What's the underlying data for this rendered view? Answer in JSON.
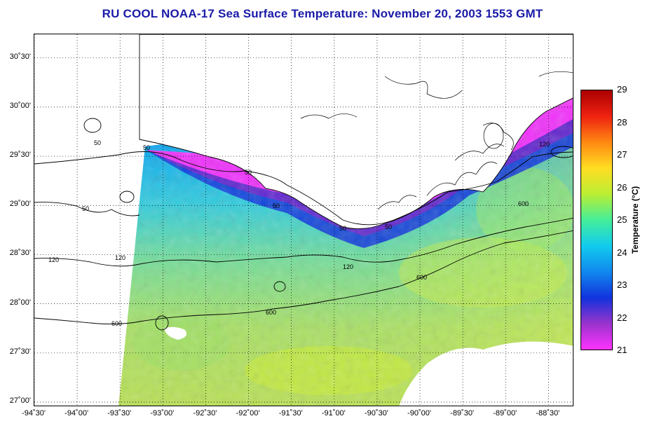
{
  "title": "RU COOL  NOAA-17  Sea Surface Temperature:  November 20, 2003 1553 GMT",
  "lat_labels": [
    {
      "value": 30.5,
      "text": "30˚30'"
    },
    {
      "value": 30.0,
      "text": "30˚00'"
    },
    {
      "value": 29.5,
      "text": "29˚30'"
    },
    {
      "value": 29.0,
      "text": "29˚00'"
    },
    {
      "value": 28.5,
      "text": "28˚30'"
    },
    {
      "value": 28.0,
      "text": "28˚00'"
    },
    {
      "value": 27.5,
      "text": "27˚30'"
    },
    {
      "value": 27.0,
      "text": "27˚00'"
    }
  ],
  "lon_labels": [
    {
      "value": -94.5,
      "text": "-94˚30'"
    },
    {
      "value": -94.0,
      "text": "-94˚00'"
    },
    {
      "value": -93.5,
      "text": "-93˚30'"
    },
    {
      "value": -93.0,
      "text": "-93˚00'"
    },
    {
      "value": -92.5,
      "text": "-92˚30'"
    },
    {
      "value": -92.0,
      "text": "-92˚00'"
    },
    {
      "value": -91.5,
      "text": "-91˚30'"
    },
    {
      "value": -91.0,
      "text": "-91˚00'"
    },
    {
      "value": -90.5,
      "text": "-90˚30'"
    },
    {
      "value": -90.0,
      "text": "-90˚00'"
    },
    {
      "value": -89.5,
      "text": "-89˚30'"
    },
    {
      "value": -89.0,
      "text": "-89˚00'"
    },
    {
      "value": -88.5,
      "text": "-88˚30'"
    }
  ],
  "contour_labels": [
    "50",
    "120",
    "600"
  ],
  "colorbar": {
    "label": "Temperature (°C)",
    "ticks": [
      "29",
      "28",
      "27",
      "26",
      "25",
      "24",
      "23",
      "22",
      "21"
    ],
    "range": [
      21,
      29
    ],
    "colors": [
      "#ff33ff",
      "#9933cc",
      "#1133dd",
      "#1188ee",
      "#11ccee",
      "#44ee99",
      "#bbee33",
      "#ffdd22",
      "#ff8811",
      "#ee2211",
      "#aa0000"
    ]
  },
  "colors": {
    "title": "#1a1aa8",
    "land": "#ffffff",
    "nodata": "#ffffff"
  }
}
